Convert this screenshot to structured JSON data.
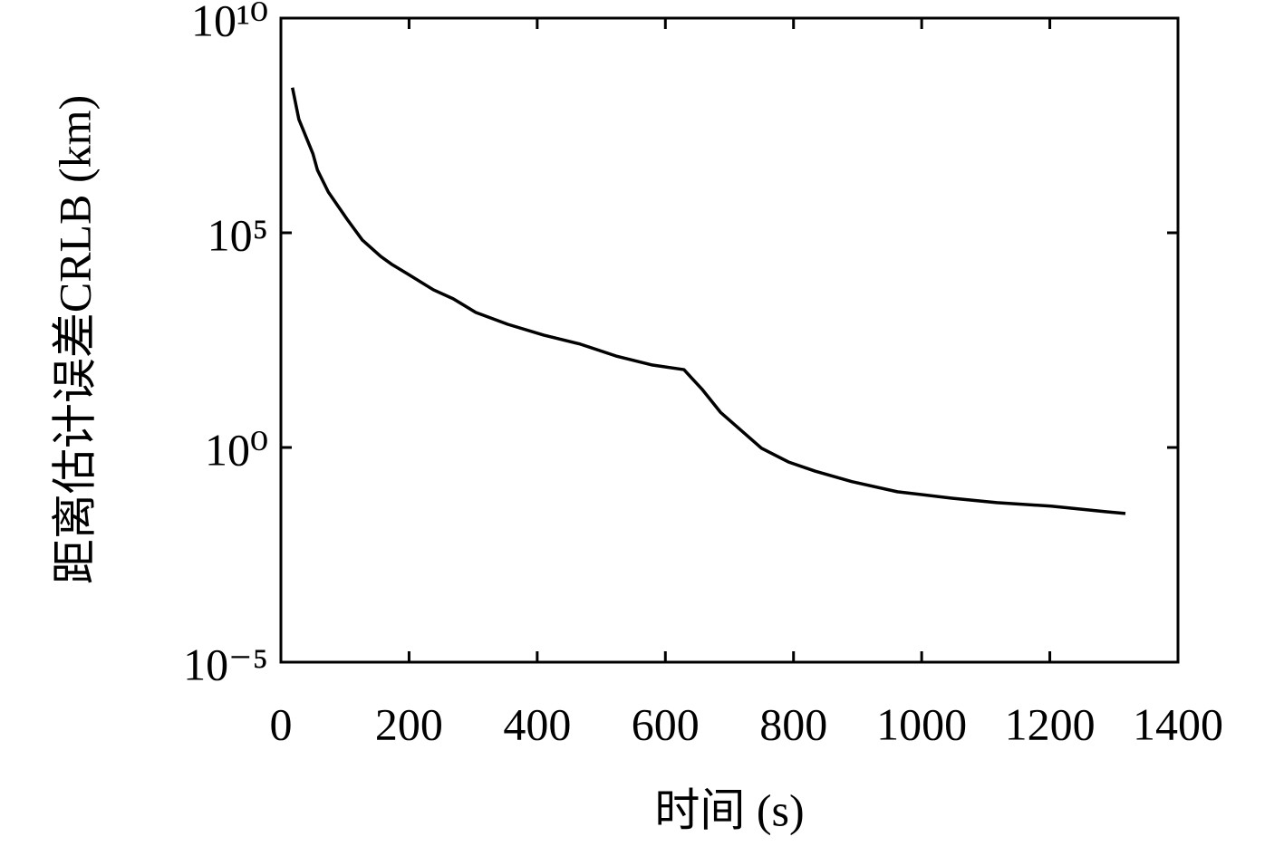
{
  "chart_data": {
    "type": "line",
    "ylabel": "距离估计误差CRLB (km)",
    "xlabel": "时间 (s)",
    "x": [
      18,
      28,
      50,
      57,
      74,
      103,
      127,
      156,
      174,
      198,
      238,
      269,
      304,
      354,
      410,
      467,
      523,
      580,
      629,
      658,
      686,
      750,
      792,
      834,
      891,
      962,
      1047,
      1117,
      1202,
      1287,
      1318
    ],
    "values": [
      240000000,
      44000000,
      6900000,
      2900000,
      890000,
      210000,
      68000,
      28000,
      18000,
      11000,
      4700,
      2900,
      1400,
      740,
      415,
      256,
      135,
      83,
      65,
      22,
      6.6,
      0.96,
      0.46,
      0.28,
      0.16,
      0.093,
      0.066,
      0.052,
      0.043,
      0.032,
      0.029
    ],
    "color": "#000000",
    "xlim": [
      0,
      1400
    ],
    "xticks": [
      0,
      200,
      400,
      600,
      800,
      1000,
      1200,
      1400
    ],
    "ylim": [
      1e-05,
      10000000000
    ],
    "yticks": [
      {
        "value": 1e-05,
        "label": "10⁻⁵"
      },
      {
        "value": 1,
        "label": "10⁰"
      },
      {
        "value": 100000,
        "label": "10⁵"
      },
      {
        "value": 10000000000,
        "label": "10¹⁰"
      }
    ],
    "yscale": "log",
    "grid": false
  }
}
